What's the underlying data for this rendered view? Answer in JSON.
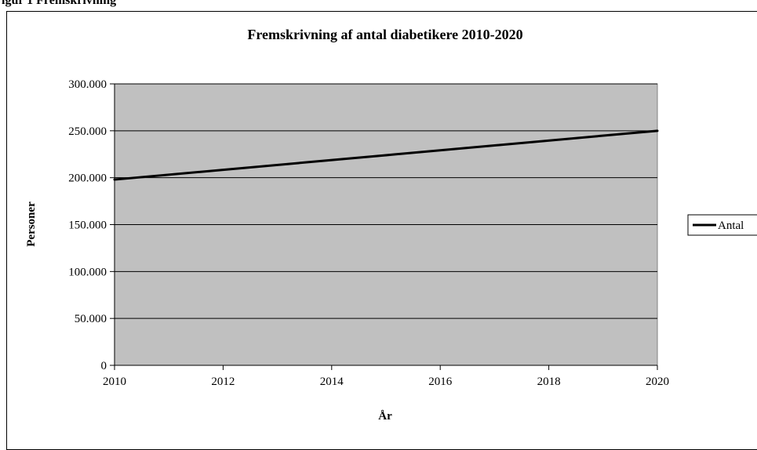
{
  "caption_fragment": "igur 1  Fremskrivning",
  "chart_data": {
    "type": "line",
    "title": "Fremskrivning af antal diabetikere 2010-2020",
    "xlabel": "År",
    "ylabel": "Personer",
    "xlim": [
      2010,
      2020
    ],
    "ylim": [
      0,
      300000
    ],
    "x_ticks": [
      2010,
      2012,
      2014,
      2016,
      2018,
      2020
    ],
    "y_ticks": [
      0,
      50000,
      100000,
      150000,
      200000,
      250000,
      300000
    ],
    "y_tick_labels": [
      "0",
      "50.000",
      "100.000",
      "150.000",
      "200.000",
      "250.000",
      "300.000"
    ],
    "grid": true,
    "plot_background": "#c0c0c0",
    "legend_position": "right",
    "series": [
      {
        "name": "Antal",
        "color": "#000000",
        "x": [
          2010,
          2015,
          2020
        ],
        "values": [
          198000,
          224000,
          250000
        ]
      }
    ]
  }
}
